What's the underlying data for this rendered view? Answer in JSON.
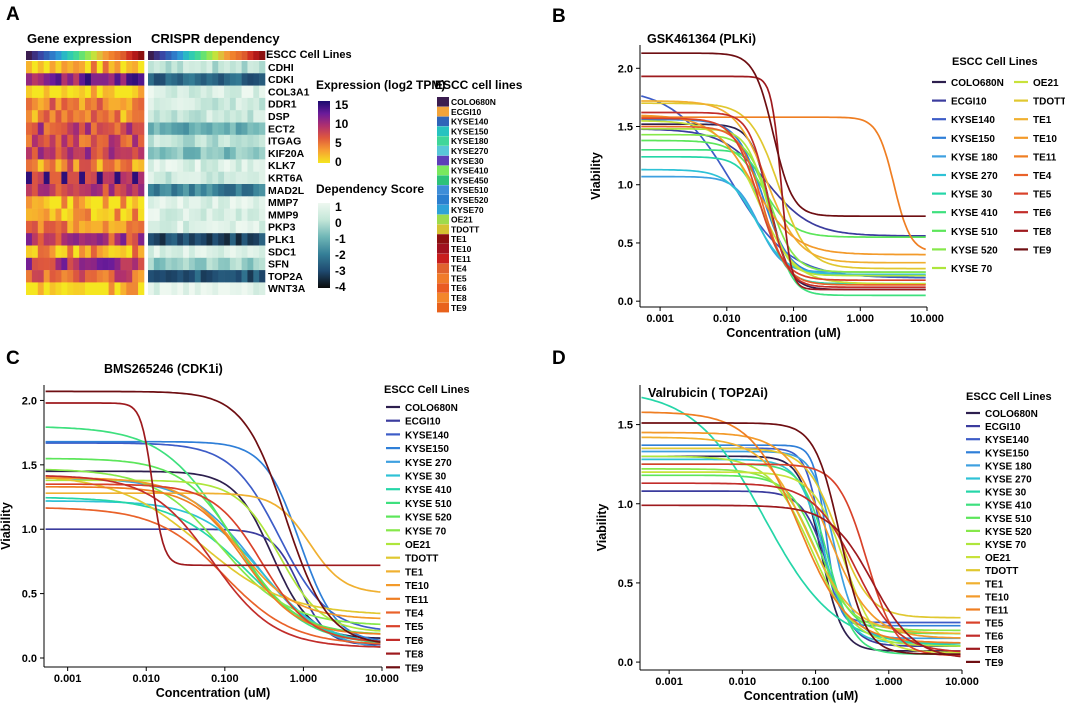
{
  "panel_letters": [
    "A",
    "B",
    "C",
    "D"
  ],
  "heatmap": {
    "title_expression": "Gene expression",
    "title_crispr": "CRISPR dependency",
    "bar_label": "ESCC Cell Lines",
    "genes": [
      "CDHI",
      "CDKI",
      "COL3A1",
      "DDR1",
      "DSP",
      "ECT2",
      "ITGAG",
      "KIF20A",
      "KLK7",
      "KRT6A",
      "MAD2L",
      "MMP7",
      "MMP9",
      "PKP3",
      "PLK1",
      "SDC1",
      "SFN",
      "TOP2A",
      "WNT3A"
    ],
    "expression_legend": {
      "title": "Expression (log2 TPM)",
      "ticks": [
        "15",
        "10",
        "5",
        "0"
      ],
      "colors": [
        "#1a0a6e",
        "#6a1b9a",
        "#b0306e",
        "#e05a3c",
        "#f7a032",
        "#f5e620"
      ]
    },
    "dependency_legend": {
      "title": "Dependency Score",
      "ticks": [
        "1",
        "0",
        "-1",
        "-2",
        "-3",
        "-4"
      ],
      "colors": [
        "#eef8f0",
        "#c3e6d8",
        "#6fb6b6",
        "#357f97",
        "#1f4a70",
        "#0a0a0a"
      ]
    },
    "cell_line_legend": {
      "title": "ESCC cell lines",
      "items": [
        {
          "label": "COLO680N",
          "color": "#3b1d4f"
        },
        {
          "label": "ECGI10",
          "color": "#f2a33a"
        },
        {
          "label": "KYSE140",
          "color": "#2f64b8"
        },
        {
          "label": "KYSE150",
          "color": "#27c3c0"
        },
        {
          "label": "KYSE180",
          "color": "#3fd69a"
        },
        {
          "label": "KYSE270",
          "color": "#58c7d8"
        },
        {
          "label": "KYSE30",
          "color": "#5d3fb8"
        },
        {
          "label": "KYSE410",
          "color": "#7ae85e"
        },
        {
          "label": "KYSE450",
          "color": "#2ec27a"
        },
        {
          "label": "KYSE510",
          "color": "#3f8ed8"
        },
        {
          "label": "KYSE520",
          "color": "#2b7fcf"
        },
        {
          "label": "KYSE70",
          "color": "#2fa2d8"
        },
        {
          "label": "OE21",
          "color": "#9ddb4c"
        },
        {
          "label": "TDOTT",
          "color": "#d4c232"
        },
        {
          "label": "TE1",
          "color": "#8c1010"
        },
        {
          "label": "TE10",
          "color": "#a0121f"
        },
        {
          "label": "TE11",
          "color": "#c81e1e"
        },
        {
          "label": "TE4",
          "color": "#e0622e"
        },
        {
          "label": "TE5",
          "color": "#f07b2a"
        },
        {
          "label": "TE6",
          "color": "#e95a22"
        },
        {
          "label": "TE8",
          "color": "#f3862b"
        },
        {
          "label": "TE9",
          "color": "#e8621c"
        }
      ]
    }
  },
  "chart_data": [
    {
      "panel": "B",
      "type": "line",
      "title": "GSK461364 (PLKi)",
      "xlabel": "Concentration (uM)",
      "ylabel": "Viability",
      "x_scale": "log10",
      "xlim": [
        0.0005,
        10
      ],
      "ylim": [
        -0.05,
        2.2
      ],
      "xticks": [
        0.001,
        0.01,
        0.1,
        1,
        10
      ],
      "xtick_labels": [
        "0.001",
        "0.010",
        "0.100",
        "1.000",
        "10.000"
      ],
      "yticks": [
        0,
        0.5,
        1,
        1.5,
        2
      ],
      "ytick_labels": [
        "0.0",
        "0.5",
        "1.0",
        "1.5",
        "2.0"
      ],
      "legend_title": "ESCC Cell Lines",
      "legend_columns": 2,
      "series": [
        {
          "name": "COLO680N",
          "color": "#2d1f4e",
          "top": 1.52,
          "bottom": 0.1,
          "ec50": 0.045,
          "hill": 3.0
        },
        {
          "name": "ECGI10",
          "color": "#3b3c9e",
          "top": 1.48,
          "bottom": 0.56,
          "ec50": 0.04,
          "hill": 1.3
        },
        {
          "name": "KYSE140",
          "color": "#3d5cc7",
          "top": 1.83,
          "bottom": 0.2,
          "ec50": 0.012,
          "hill": 1.0
        },
        {
          "name": "KYSE150",
          "color": "#2f7fd8",
          "top": 1.56,
          "bottom": 0.22,
          "ec50": 0.035,
          "hill": 2.2
        },
        {
          "name": "KYSE 180",
          "color": "#3ea0e0",
          "top": 1.07,
          "bottom": 0.25,
          "ec50": 0.03,
          "hill": 2.5
        },
        {
          "name": "KYSE 270",
          "color": "#2ec2d6",
          "top": 1.13,
          "bottom": 0.23,
          "ec50": 0.028,
          "hill": 2.0
        },
        {
          "name": "KYSE 30",
          "color": "#25d6a8",
          "top": 1.24,
          "bottom": 0.15,
          "ec50": 0.038,
          "hill": 2.6
        },
        {
          "name": "KYSE 410",
          "color": "#3ee07e",
          "top": 1.3,
          "bottom": 0.05,
          "ec50": 0.05,
          "hill": 3.0
        },
        {
          "name": "KYSE 510",
          "color": "#5ce65a",
          "top": 1.38,
          "bottom": 0.55,
          "ec50": 0.035,
          "hill": 2.0
        },
        {
          "name": "KYSE 520",
          "color": "#86e84a",
          "top": 1.43,
          "bottom": 0.25,
          "ec50": 0.045,
          "hill": 2.4
        },
        {
          "name": "KYSE 70",
          "color": "#aee63c",
          "top": 1.48,
          "bottom": 0.22,
          "ec50": 0.04,
          "hill": 2.8
        },
        {
          "name": "OE21",
          "color": "#c8e23a",
          "top": 1.55,
          "bottom": 0.15,
          "ec50": 0.03,
          "hill": 1.6
        },
        {
          "name": "TDOTT",
          "color": "#e0c830",
          "top": 1.7,
          "bottom": 0.28,
          "ec50": 0.06,
          "hill": 2.0
        },
        {
          "name": "TE1",
          "color": "#f0b030",
          "top": 1.72,
          "bottom": 0.33,
          "ec50": 0.04,
          "hill": 1.8
        },
        {
          "name": "TE10",
          "color": "#f39a2a",
          "top": 1.6,
          "bottom": 0.4,
          "ec50": 0.025,
          "hill": 1.4
        },
        {
          "name": "TE11",
          "color": "#ef7e22",
          "top": 1.58,
          "bottom": 0.42,
          "ec50": 3.2,
          "hill": 3.5
        },
        {
          "name": "TE4",
          "color": "#e9622a",
          "top": 1.5,
          "bottom": 0.14,
          "ec50": 0.035,
          "hill": 2.5
        },
        {
          "name": "TE5",
          "color": "#d9422a",
          "top": 1.57,
          "bottom": 0.18,
          "ec50": 0.03,
          "hill": 2.3
        },
        {
          "name": "TE6",
          "color": "#c22d2a",
          "top": 1.62,
          "bottom": 0.12,
          "ec50": 0.042,
          "hill": 3.0
        },
        {
          "name": "TE8",
          "color": "#9e1a1e",
          "top": 1.93,
          "bottom": 0.1,
          "ec50": 0.065,
          "hill": 6.0
        },
        {
          "name": "TE9",
          "color": "#6e0e12",
          "top": 2.13,
          "bottom": 0.73,
          "ec50": 0.05,
          "hill": 3.0
        }
      ]
    },
    {
      "panel": "C",
      "type": "line",
      "title": "BMS265246 (CDK1i)",
      "xlabel": "Concentration (uM)",
      "ylabel": "Viability",
      "x_scale": "log10",
      "xlim": [
        0.0005,
        10
      ],
      "ylim": [
        -0.07,
        2.12
      ],
      "xticks": [
        0.001,
        0.01,
        0.1,
        1,
        10
      ],
      "xtick_labels": [
        "0.001",
        "0.010",
        "0.100",
        "1.000",
        "10.000"
      ],
      "yticks": [
        0,
        0.5,
        1,
        1.5,
        2
      ],
      "ytick_labels": [
        "0.0",
        "0.5",
        "1.0",
        "1.5",
        "2.0"
      ],
      "legend_title": "ESCC Cell Lines",
      "legend_columns": 1,
      "series": [
        {
          "name": "COLO680N",
          "color": "#2d1f4e",
          "top": 1.45,
          "bottom": 0.15,
          "ec50": 0.4,
          "hill": 1.8
        },
        {
          "name": "ECGI10",
          "color": "#3b3c9e",
          "top": 1.0,
          "bottom": 0.1,
          "ec50": 0.9,
          "hill": 2.5
        },
        {
          "name": "KYSE140",
          "color": "#3d5cc7",
          "top": 1.67,
          "bottom": 0.2,
          "ec50": 0.5,
          "hill": 1.4
        },
        {
          "name": "KYSE150",
          "color": "#2f7fd8",
          "top": 1.68,
          "bottom": 0.12,
          "ec50": 0.9,
          "hill": 1.9
        },
        {
          "name": "KYSE 270",
          "color": "#3ea0e0",
          "top": 1.4,
          "bottom": 0.05,
          "ec50": 0.25,
          "hill": 1.0
        },
        {
          "name": "KYSE 30",
          "color": "#2ec2d6",
          "top": 1.22,
          "bottom": 0.1,
          "ec50": 0.3,
          "hill": 1.1
        },
        {
          "name": "KYSE 410",
          "color": "#25d6a8",
          "top": 1.25,
          "bottom": 0.08,
          "ec50": 0.2,
          "hill": 0.9
        },
        {
          "name": "KYSE 510",
          "color": "#3ee07e",
          "top": 1.8,
          "bottom": 0.1,
          "ec50": 0.12,
          "hill": 1.0
        },
        {
          "name": "KYSE 520",
          "color": "#5ce65a",
          "top": 1.55,
          "bottom": 0.18,
          "ec50": 0.15,
          "hill": 1.2
        },
        {
          "name": "KYSE 70",
          "color": "#86e84a",
          "top": 1.47,
          "bottom": 0.25,
          "ec50": 0.09,
          "hill": 1.0
        },
        {
          "name": "OE21",
          "color": "#aee63c",
          "top": 1.38,
          "bottom": 0.2,
          "ec50": 0.5,
          "hill": 1.6
        },
        {
          "name": "TDOTT",
          "color": "#e0c830",
          "top": 1.43,
          "bottom": 0.33,
          "ec50": 0.05,
          "hill": 0.8
        },
        {
          "name": "TE1",
          "color": "#f0b030",
          "top": 1.28,
          "bottom": 0.5,
          "ec50": 1.2,
          "hill": 2.0
        },
        {
          "name": "TE10",
          "color": "#f39a2a",
          "top": 1.4,
          "bottom": 0.3,
          "ec50": 0.15,
          "hill": 1.2
        },
        {
          "name": "TE11",
          "color": "#ef7e22",
          "top": 1.33,
          "bottom": 0.18,
          "ec50": 0.18,
          "hill": 1.3
        },
        {
          "name": "TE4",
          "color": "#e9622a",
          "top": 1.17,
          "bottom": 0.1,
          "ec50": 0.1,
          "hill": 1.0
        },
        {
          "name": "TE5",
          "color": "#d9422a",
          "top": 1.35,
          "bottom": 0.12,
          "ec50": 0.3,
          "hill": 1.4
        },
        {
          "name": "TE6",
          "color": "#c22d2a",
          "top": 1.42,
          "bottom": 0.08,
          "ec50": 0.07,
          "hill": 1.1
        },
        {
          "name": "TE8",
          "color": "#9e1a1e",
          "top": 1.98,
          "bottom": 0.72,
          "ec50": 0.012,
          "hill": 6.0
        },
        {
          "name": "TE9",
          "color": "#6e0e12",
          "top": 2.07,
          "bottom": 0.1,
          "ec50": 0.6,
          "hill": 1.6
        }
      ]
    },
    {
      "panel": "D",
      "type": "line",
      "title": "Valrubicin ( TOP2Ai)",
      "xlabel": "Concentration (uM)",
      "ylabel": "Viability",
      "x_scale": "log10",
      "xlim": [
        0.0004,
        10
      ],
      "ylim": [
        -0.05,
        1.75
      ],
      "xticks": [
        0.001,
        0.01,
        0.1,
        1,
        10
      ],
      "xtick_labels": [
        "0.001",
        "0.010",
        "0.100",
        "1.000",
        "10.000"
      ],
      "yticks": [
        0,
        0.5,
        1,
        1.5
      ],
      "ytick_labels": [
        "0.0",
        "0.5",
        "1.0",
        "1.5"
      ],
      "legend_title": "ESCC Cell Lines",
      "legend_columns": 1,
      "series": [
        {
          "name": "COLO680N",
          "color": "#2d1f4e",
          "top": 1.3,
          "bottom": 0.07,
          "ec50": 0.12,
          "hill": 3.0
        },
        {
          "name": "ECGI10",
          "color": "#3b3c9e",
          "top": 1.08,
          "bottom": 0.1,
          "ec50": 0.15,
          "hill": 2.5
        },
        {
          "name": "KYSE140",
          "color": "#3d5cc7",
          "top": 1.35,
          "bottom": 0.25,
          "ec50": 0.12,
          "hill": 4.0
        },
        {
          "name": "KYSE150",
          "color": "#2f7fd8",
          "top": 1.37,
          "bottom": 0.23,
          "ec50": 0.14,
          "hill": 5.0
        },
        {
          "name": "KYSE 180",
          "color": "#3ea0e0",
          "top": 1.33,
          "bottom": 0.15,
          "ec50": 0.18,
          "hill": 3.0
        },
        {
          "name": "KYSE 270",
          "color": "#2ec2d6",
          "top": 1.28,
          "bottom": 0.12,
          "ec50": 0.13,
          "hill": 2.5
        },
        {
          "name": "KYSE 30",
          "color": "#25d6a8",
          "top": 1.72,
          "bottom": 0.1,
          "ec50": 0.02,
          "hill": 0.9
        },
        {
          "name": "KYSE 410",
          "color": "#3ee07e",
          "top": 1.25,
          "bottom": 0.05,
          "ec50": 0.15,
          "hill": 2.5
        },
        {
          "name": "KYSE 510",
          "color": "#5ce65a",
          "top": 1.18,
          "bottom": 0.18,
          "ec50": 0.12,
          "hill": 2.0
        },
        {
          "name": "KYSE 520",
          "color": "#86e84a",
          "top": 1.22,
          "bottom": 0.2,
          "ec50": 0.1,
          "hill": 1.8
        },
        {
          "name": "KYSE 70",
          "color": "#aee63c",
          "top": 1.3,
          "bottom": 0.1,
          "ec50": 0.09,
          "hill": 1.5
        },
        {
          "name": "OE21",
          "color": "#c8e23a",
          "top": 1.2,
          "bottom": 0.06,
          "ec50": 0.25,
          "hill": 2.0
        },
        {
          "name": "TDOTT",
          "color": "#e0c830",
          "top": 1.35,
          "bottom": 0.28,
          "ec50": 0.2,
          "hill": 2.0
        },
        {
          "name": "TE1",
          "color": "#f0b030",
          "top": 1.42,
          "bottom": 0.18,
          "ec50": 0.08,
          "hill": 1.4
        },
        {
          "name": "TE10",
          "color": "#f39a2a",
          "top": 1.45,
          "bottom": 0.15,
          "ec50": 0.15,
          "hill": 1.5
        },
        {
          "name": "TE11",
          "color": "#ef7e22",
          "top": 1.58,
          "bottom": 0.12,
          "ec50": 0.06,
          "hill": 1.3
        },
        {
          "name": "TE5",
          "color": "#d9422a",
          "top": 1.25,
          "bottom": 0.04,
          "ec50": 0.5,
          "hill": 2.2
        },
        {
          "name": "TE6",
          "color": "#c22d2a",
          "top": 1.13,
          "bottom": 0.06,
          "ec50": 0.35,
          "hill": 1.5
        },
        {
          "name": "TE8",
          "color": "#9e1a1e",
          "top": 0.99,
          "bottom": 0.02,
          "ec50": 0.6,
          "hill": 1.5
        },
        {
          "name": "TE9",
          "color": "#6e0e12",
          "top": 1.51,
          "bottom": 0.05,
          "ec50": 0.22,
          "hill": 2.5
        }
      ]
    }
  ]
}
